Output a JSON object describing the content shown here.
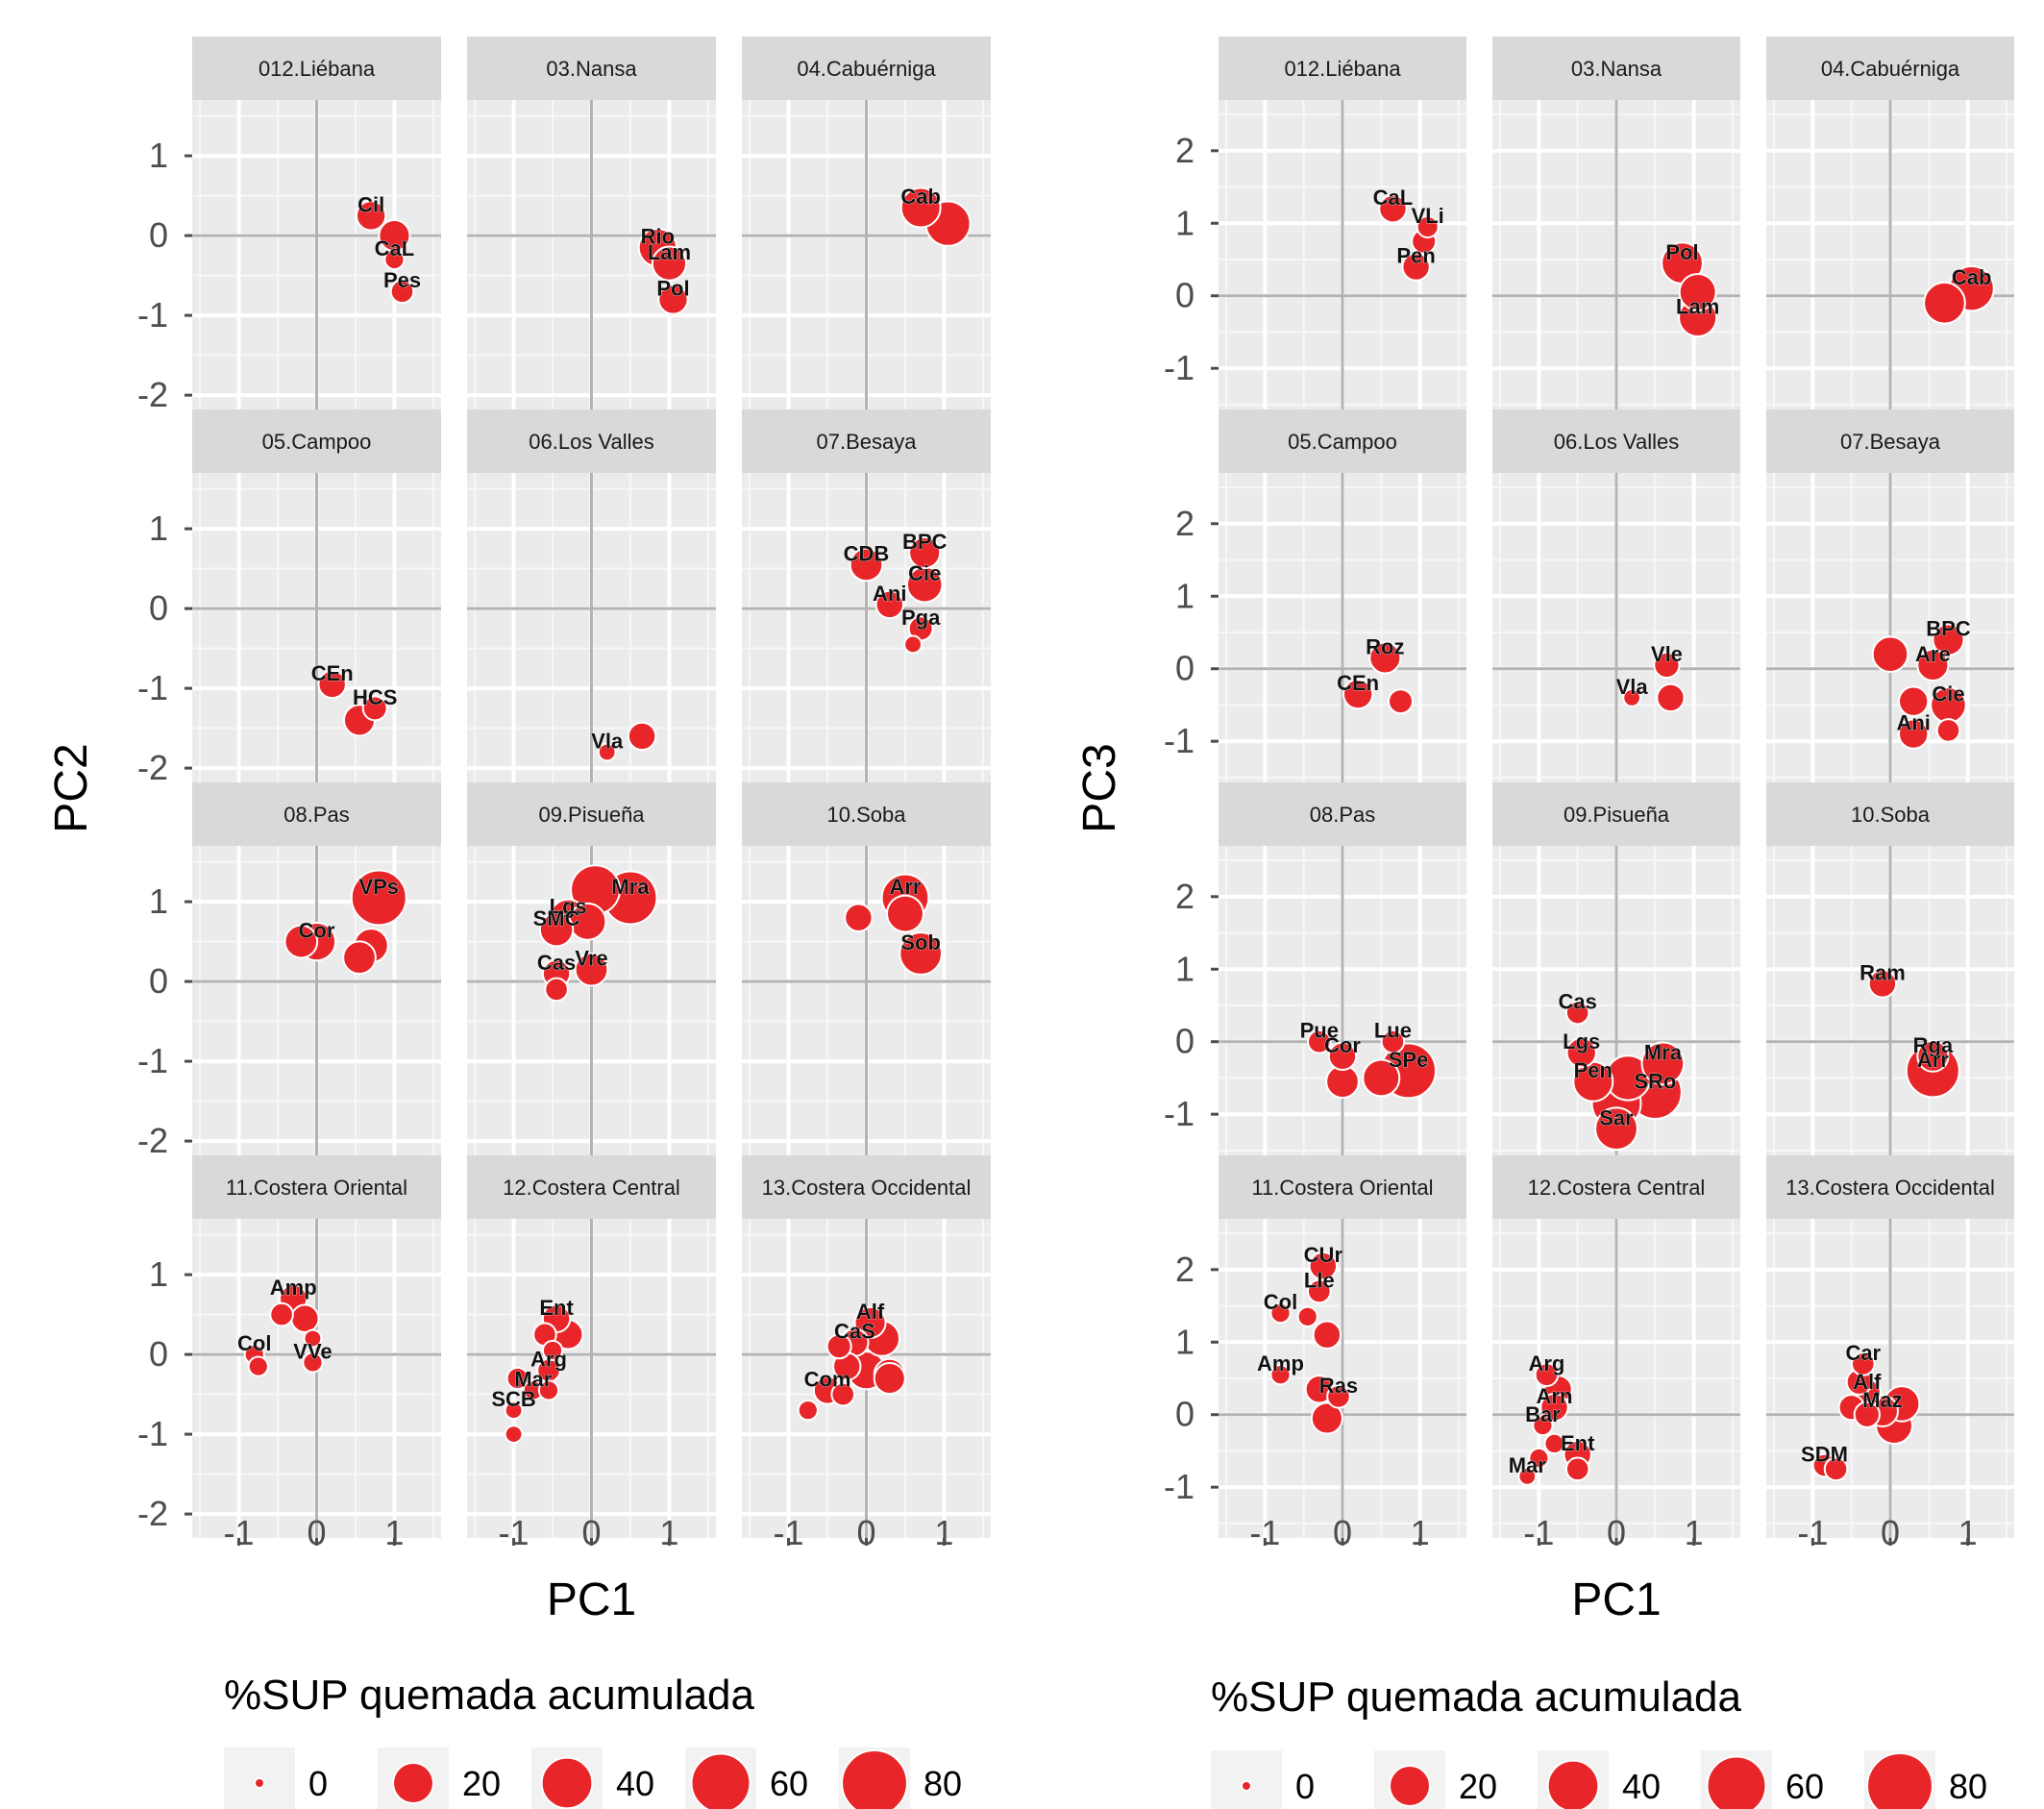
{
  "chart_data": [
    {
      "type": "scatter",
      "xlabel": "PC1",
      "ylabel": "PC2",
      "xlim": [
        -1.6,
        1.6
      ],
      "ylim": [
        -2.3,
        1.7
      ],
      "x_ticks": [
        -1,
        0,
        1
      ],
      "y_ticks": [
        1,
        0,
        -1,
        -2
      ],
      "x_tick_labels": [
        "-1",
        "0",
        "1"
      ],
      "y_tick_labels": [
        "1",
        "0",
        "-1",
        "-2"
      ],
      "point_color": "#e8262a",
      "panel_bg": "#ebebeb",
      "strip_bg": "#d9d9d9",
      "grid": true,
      "size_legend": {
        "title": "%SUP quemada acumulada",
        "values": [
          0,
          20,
          40,
          60,
          80
        ],
        "labels": [
          "0",
          "20",
          "40",
          "60",
          "80"
        ]
      },
      "panels": [
        {
          "title": "012.Liébana",
          "points": [
            {
              "x": 0.7,
              "y": 0.25,
              "s": 10,
              "label": "Cil"
            },
            {
              "x": 1.0,
              "y": 0.0,
              "s": 12
            },
            {
              "x": 1.0,
              "y": -0.3,
              "s": 2,
              "label": "CaL"
            },
            {
              "x": 1.1,
              "y": -0.7,
              "s": 4,
              "label": "Pes"
            }
          ]
        },
        {
          "title": "03.Nansa",
          "points": [
            {
              "x": 0.85,
              "y": -0.15,
              "s": 22,
              "label": "Rio"
            },
            {
              "x": 1.0,
              "y": -0.35,
              "s": 16,
              "label": "Lam"
            },
            {
              "x": 1.05,
              "y": -0.8,
              "s": 10,
              "label": "Pol"
            }
          ]
        },
        {
          "title": "04.Cabuérniga",
          "points": [
            {
              "x": 0.7,
              "y": 0.35,
              "s": 25,
              "label": "Cab"
            },
            {
              "x": 1.05,
              "y": 0.15,
              "s": 35
            }
          ]
        },
        {
          "title": "05.Campoo",
          "points": [
            {
              "x": 0.2,
              "y": -0.95,
              "s": 8,
              "label": "CEn"
            },
            {
              "x": 0.55,
              "y": -1.4,
              "s": 12
            },
            {
              "x": 0.75,
              "y": -1.25,
              "s": 5,
              "label": "HCS"
            }
          ]
        },
        {
          "title": "06.Los Valles",
          "points": [
            {
              "x": 0.2,
              "y": -1.8,
              "s": 1,
              "label": "Vla"
            },
            {
              "x": 0.65,
              "y": -1.6,
              "s": 8
            }
          ]
        },
        {
          "title": "07.Besaya",
          "points": [
            {
              "x": 0.0,
              "y": 0.55,
              "s": 14,
              "label": "CDB"
            },
            {
              "x": 0.75,
              "y": 0.7,
              "s": 12,
              "label": "BPC"
            },
            {
              "x": 0.75,
              "y": 0.3,
              "s": 18,
              "label": "Cie"
            },
            {
              "x": 0.3,
              "y": 0.05,
              "s": 8,
              "label": "Ani"
            },
            {
              "x": 0.7,
              "y": -0.25,
              "s": 5,
              "label": "Pga"
            },
            {
              "x": 0.6,
              "y": -0.45,
              "s": 1
            }
          ]
        },
        {
          "title": "08.Pas",
          "points": [
            {
              "x": 0.8,
              "y": 1.05,
              "s": 60,
              "label": "VPs"
            },
            {
              "x": 0.0,
              "y": 0.5,
              "s": 22,
              "label": "Cor"
            },
            {
              "x": -0.2,
              "y": 0.5,
              "s": 14
            },
            {
              "x": 0.7,
              "y": 0.45,
              "s": 16
            },
            {
              "x": 0.55,
              "y": 0.3,
              "s": 14
            }
          ]
        },
        {
          "title": "09.Pisueña",
          "points": [
            {
              "x": 0.5,
              "y": 1.05,
              "s": 55,
              "label": "Mra"
            },
            {
              "x": 0.05,
              "y": 1.15,
              "s": 45
            },
            {
              "x": -0.3,
              "y": 0.8,
              "s": 20,
              "label": "Lgs"
            },
            {
              "x": -0.45,
              "y": 0.65,
              "s": 15,
              "label": "SMC"
            },
            {
              "x": -0.05,
              "y": 0.75,
              "s": 20
            },
            {
              "x": 0.0,
              "y": 0.15,
              "s": 14,
              "label": "Vre"
            },
            {
              "x": -0.45,
              "y": 0.1,
              "s": 8,
              "label": "Cas"
            },
            {
              "x": -0.45,
              "y": -0.1,
              "s": 4
            }
          ]
        },
        {
          "title": "10.Soba",
          "points": [
            {
              "x": 0.5,
              "y": 1.05,
              "s": 40,
              "label": "Arr"
            },
            {
              "x": 0.5,
              "y": 0.85,
              "s": 20
            },
            {
              "x": -0.1,
              "y": 0.8,
              "s": 8
            },
            {
              "x": 0.7,
              "y": 0.35,
              "s": 30,
              "label": "Sob"
            }
          ]
        },
        {
          "title": "11.Costera Oriental",
          "points": [
            {
              "x": -0.3,
              "y": 0.7,
              "s": 8,
              "label": "Amp"
            },
            {
              "x": -0.45,
              "y": 0.5,
              "s": 4
            },
            {
              "x": -0.15,
              "y": 0.45,
              "s": 8
            },
            {
              "x": -0.05,
              "y": 0.2,
              "s": 1
            },
            {
              "x": -0.8,
              "y": 0.0,
              "s": 2,
              "label": "Col"
            },
            {
              "x": -0.75,
              "y": -0.15,
              "s": 2
            },
            {
              "x": -0.05,
              "y": -0.1,
              "s": 2,
              "label": "VVe"
            }
          ]
        },
        {
          "title": "12.Costera Central",
          "points": [
            {
              "x": -0.45,
              "y": 0.45,
              "s": 8,
              "label": "Ent"
            },
            {
              "x": -0.3,
              "y": 0.25,
              "s": 10
            },
            {
              "x": -0.6,
              "y": 0.25,
              "s": 4
            },
            {
              "x": -0.5,
              "y": 0.05,
              "s": 2
            },
            {
              "x": -0.55,
              "y": -0.2,
              "s": 4,
              "label": "Arg"
            },
            {
              "x": -0.95,
              "y": -0.3,
              "s": 3
            },
            {
              "x": -0.75,
              "y": -0.45,
              "s": 2,
              "label": "Mar"
            },
            {
              "x": -0.55,
              "y": -0.45,
              "s": 2
            },
            {
              "x": -1.0,
              "y": -0.7,
              "s": 1,
              "label": "SCB"
            },
            {
              "x": -1.0,
              "y": -1.0,
              "s": 1
            }
          ]
        },
        {
          "title": "13.Costera Occidental",
          "points": [
            {
              "x": 0.05,
              "y": 0.4,
              "s": 12,
              "label": "Alf"
            },
            {
              "x": 0.2,
              "y": 0.2,
              "s": 18
            },
            {
              "x": -0.15,
              "y": 0.15,
              "s": 8,
              "label": "CaS"
            },
            {
              "x": -0.35,
              "y": 0.1,
              "s": 5
            },
            {
              "x": 0.0,
              "y": -0.2,
              "s": 22
            },
            {
              "x": -0.25,
              "y": -0.15,
              "s": 8
            },
            {
              "x": 0.3,
              "y": -0.25,
              "s": 12
            },
            {
              "x": 0.3,
              "y": -0.3,
              "s": 12
            },
            {
              "x": -0.5,
              "y": -0.45,
              "s": 8,
              "label": "Com"
            },
            {
              "x": -0.3,
              "y": -0.5,
              "s": 4
            },
            {
              "x": -0.75,
              "y": -0.7,
              "s": 2
            }
          ]
        }
      ]
    },
    {
      "type": "scatter",
      "xlabel": "PC1",
      "ylabel": "PC3",
      "xlim": [
        -1.6,
        1.6
      ],
      "ylim": [
        -1.7,
        2.7
      ],
      "x_ticks": [
        -1,
        0,
        1
      ],
      "y_ticks": [
        2,
        1,
        0,
        -1
      ],
      "x_tick_labels": [
        "-1",
        "0",
        "1"
      ],
      "y_tick_labels": [
        "2",
        "1",
        "0",
        "-1"
      ],
      "point_color": "#e8262a",
      "panel_bg": "#ebebeb",
      "strip_bg": "#d9d9d9",
      "grid": true,
      "size_legend": {
        "title": "%SUP quemada acumulada",
        "values": [
          0,
          20,
          40,
          60,
          80
        ],
        "labels": [
          "0",
          "20",
          "40",
          "60",
          "80"
        ]
      },
      "panels": [
        {
          "title": "012.Liébana",
          "points": [
            {
              "x": 0.65,
              "y": 1.2,
              "s": 8,
              "label": "CaL"
            },
            {
              "x": 1.1,
              "y": 0.95,
              "s": 3,
              "label": "VLi"
            },
            {
              "x": 1.05,
              "y": 0.75,
              "s": 5
            },
            {
              "x": 0.95,
              "y": 0.4,
              "s": 8,
              "label": "Pen"
            }
          ]
        },
        {
          "title": "03.Nansa",
          "points": [
            {
              "x": 0.85,
              "y": 0.45,
              "s": 28,
              "label": "Pol"
            },
            {
              "x": 1.05,
              "y": 0.05,
              "s": 20
            },
            {
              "x": 1.05,
              "y": -0.3,
              "s": 22,
              "label": "Lam"
            }
          ]
        },
        {
          "title": "04.Cabuérniga",
          "points": [
            {
              "x": 1.05,
              "y": 0.1,
              "s": 35,
              "label": "Cab"
            },
            {
              "x": 0.7,
              "y": -0.1,
              "s": 28
            }
          ]
        },
        {
          "title": "05.Campoo",
          "points": [
            {
              "x": 0.55,
              "y": 0.15,
              "s": 12,
              "label": "Roz"
            },
            {
              "x": 0.2,
              "y": -0.35,
              "s": 10,
              "label": "CEn"
            },
            {
              "x": 0.75,
              "y": -0.45,
              "s": 5
            }
          ]
        },
        {
          "title": "06.Los Valles",
          "points": [
            {
              "x": 0.65,
              "y": 0.05,
              "s": 6,
              "label": "Vle"
            },
            {
              "x": 0.2,
              "y": -0.4,
              "s": 1,
              "label": "Vla"
            },
            {
              "x": 0.7,
              "y": -0.4,
              "s": 8
            }
          ]
        },
        {
          "title": "07.Besaya",
          "points": [
            {
              "x": 0.0,
              "y": 0.2,
              "s": 18
            },
            {
              "x": 0.75,
              "y": 0.4,
              "s": 12,
              "label": "BPC"
            },
            {
              "x": 0.55,
              "y": 0.05,
              "s": 12,
              "label": "Are"
            },
            {
              "x": 0.3,
              "y": -0.45,
              "s": 10
            },
            {
              "x": 0.75,
              "y": -0.5,
              "s": 18,
              "label": "Cie"
            },
            {
              "x": 0.3,
              "y": -0.9,
              "s": 10,
              "label": "Ani"
            },
            {
              "x": 0.75,
              "y": -0.85,
              "s": 4
            }
          ]
        },
        {
          "title": "08.Pas",
          "points": [
            {
              "x": -0.3,
              "y": 0.0,
              "s": 4,
              "label": "Pue"
            },
            {
              "x": 0.0,
              "y": -0.2,
              "s": 8,
              "label": "Cor"
            },
            {
              "x": 0.65,
              "y": 0.0,
              "s": 4,
              "label": "Lue"
            },
            {
              "x": 0.5,
              "y": -0.5,
              "s": 20
            },
            {
              "x": 0.85,
              "y": -0.4,
              "s": 60,
              "label": "SPe"
            },
            {
              "x": 0.0,
              "y": -0.55,
              "s": 14
            }
          ]
        },
        {
          "title": "09.Pisueña",
          "points": [
            {
              "x": -0.5,
              "y": 0.4,
              "s": 4,
              "label": "Cas"
            },
            {
              "x": -0.45,
              "y": -0.15,
              "s": 10,
              "label": "Lgs"
            },
            {
              "x": 0.6,
              "y": -0.3,
              "s": 30,
              "label": "Mra"
            },
            {
              "x": -0.3,
              "y": -0.55,
              "s": 25,
              "label": "Pen"
            },
            {
              "x": 0.15,
              "y": -0.5,
              "s": 35
            },
            {
              "x": 0.5,
              "y": -0.7,
              "s": 55,
              "label": "SRo"
            },
            {
              "x": 0.0,
              "y": -0.85,
              "s": 45
            },
            {
              "x": 0.0,
              "y": -1.2,
              "s": 30,
              "label": "Sar"
            }
          ]
        },
        {
          "title": "10.Soba",
          "points": [
            {
              "x": -0.1,
              "y": 0.8,
              "s": 8,
              "label": "Ram"
            },
            {
              "x": 0.55,
              "y": -0.2,
              "s": 12,
              "label": "Rga"
            },
            {
              "x": 0.55,
              "y": -0.4,
              "s": 55,
              "label": "Arr"
            }
          ]
        },
        {
          "title": "11.Costera Oriental",
          "points": [
            {
              "x": -0.25,
              "y": 2.05,
              "s": 8,
              "label": "CUr"
            },
            {
              "x": -0.3,
              "y": 1.7,
              "s": 4,
              "label": "Lle"
            },
            {
              "x": -0.8,
              "y": 1.4,
              "s": 2,
              "label": "Col"
            },
            {
              "x": -0.45,
              "y": 1.35,
              "s": 2
            },
            {
              "x": -0.2,
              "y": 1.1,
              "s": 8
            },
            {
              "x": -0.8,
              "y": 0.55,
              "s": 2,
              "label": "Amp"
            },
            {
              "x": -0.3,
              "y": 0.35,
              "s": 8
            },
            {
              "x": -0.05,
              "y": 0.25,
              "s": 4,
              "label": "Ras"
            },
            {
              "x": -0.2,
              "y": -0.05,
              "s": 12
            }
          ]
        },
        {
          "title": "12.Costera Central",
          "points": [
            {
              "x": -0.9,
              "y": 0.55,
              "s": 4,
              "label": "Arg"
            },
            {
              "x": -0.75,
              "y": 0.35,
              "s": 8
            },
            {
              "x": -0.8,
              "y": 0.1,
              "s": 8,
              "label": "Arn"
            },
            {
              "x": -0.95,
              "y": -0.15,
              "s": 2,
              "label": "Bar"
            },
            {
              "x": -0.8,
              "y": -0.4,
              "s": 2
            },
            {
              "x": -0.5,
              "y": -0.55,
              "s": 8,
              "label": "Ent"
            },
            {
              "x": -1.0,
              "y": -0.6,
              "s": 2
            },
            {
              "x": -1.15,
              "y": -0.85,
              "s": 1,
              "label": "Mar"
            },
            {
              "x": -0.5,
              "y": -0.75,
              "s": 4
            }
          ]
        },
        {
          "title": "13.Costera Occidental",
          "points": [
            {
              "x": -0.35,
              "y": 0.7,
              "s": 4,
              "label": "Car"
            },
            {
              "x": -0.4,
              "y": 0.45,
              "s": 6
            },
            {
              "x": -0.3,
              "y": 0.3,
              "s": 8,
              "label": "Alf"
            },
            {
              "x": 0.15,
              "y": 0.15,
              "s": 18
            },
            {
              "x": -0.5,
              "y": 0.1,
              "s": 6
            },
            {
              "x": -0.1,
              "y": 0.05,
              "s": 12,
              "label": "Maz"
            },
            {
              "x": -0.3,
              "y": 0.0,
              "s": 6
            },
            {
              "x": 0.05,
              "y": -0.15,
              "s": 20
            },
            {
              "x": -0.85,
              "y": -0.7,
              "s": 4,
              "label": "SDM"
            },
            {
              "x": -0.7,
              "y": -0.75,
              "s": 4
            }
          ]
        }
      ]
    }
  ]
}
